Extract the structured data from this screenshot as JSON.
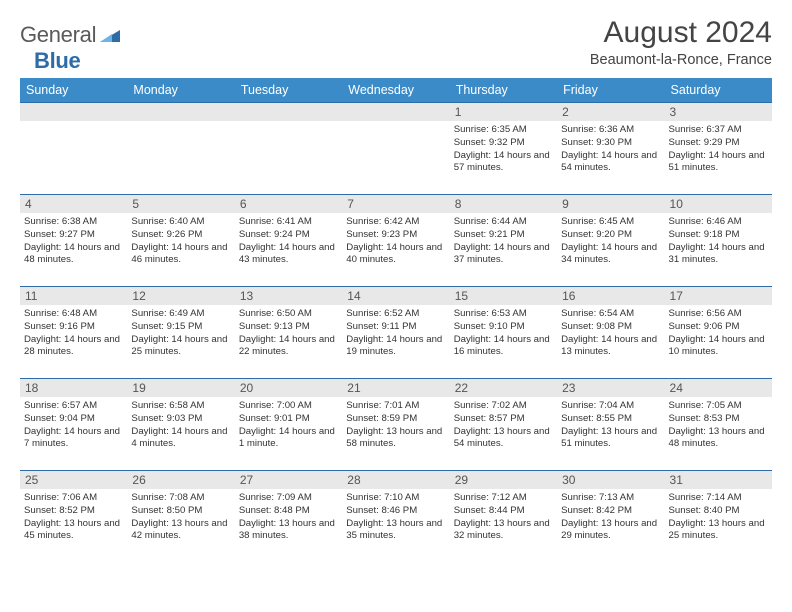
{
  "brand": {
    "part1": "General",
    "part2": "Blue"
  },
  "title": "August 2024",
  "location": "Beaumont-la-Ronce, France",
  "colors": {
    "header_blue": "#3b8bc9",
    "divider_blue": "#2e6ca8",
    "daynum_bg": "#e8e8e8",
    "background": "#ffffff",
    "text": "#222222"
  },
  "typography": {
    "body_pt": 9.6,
    "daynum_pt": 12,
    "header_pt": 12.5,
    "title_pt": 30,
    "subtitle_pt": 14.5
  },
  "calendar": {
    "type": "table",
    "day_headers": [
      "Sunday",
      "Monday",
      "Tuesday",
      "Wednesday",
      "Thursday",
      "Friday",
      "Saturday"
    ],
    "weeks": [
      [
        null,
        null,
        null,
        null,
        {
          "n": "1",
          "sunrise": "6:35 AM",
          "sunset": "9:32 PM",
          "daylight": "14 hours and 57 minutes."
        },
        {
          "n": "2",
          "sunrise": "6:36 AM",
          "sunset": "9:30 PM",
          "daylight": "14 hours and 54 minutes."
        },
        {
          "n": "3",
          "sunrise": "6:37 AM",
          "sunset": "9:29 PM",
          "daylight": "14 hours and 51 minutes."
        }
      ],
      [
        {
          "n": "4",
          "sunrise": "6:38 AM",
          "sunset": "9:27 PM",
          "daylight": "14 hours and 48 minutes."
        },
        {
          "n": "5",
          "sunrise": "6:40 AM",
          "sunset": "9:26 PM",
          "daylight": "14 hours and 46 minutes."
        },
        {
          "n": "6",
          "sunrise": "6:41 AM",
          "sunset": "9:24 PM",
          "daylight": "14 hours and 43 minutes."
        },
        {
          "n": "7",
          "sunrise": "6:42 AM",
          "sunset": "9:23 PM",
          "daylight": "14 hours and 40 minutes."
        },
        {
          "n": "8",
          "sunrise": "6:44 AM",
          "sunset": "9:21 PM",
          "daylight": "14 hours and 37 minutes."
        },
        {
          "n": "9",
          "sunrise": "6:45 AM",
          "sunset": "9:20 PM",
          "daylight": "14 hours and 34 minutes."
        },
        {
          "n": "10",
          "sunrise": "6:46 AM",
          "sunset": "9:18 PM",
          "daylight": "14 hours and 31 minutes."
        }
      ],
      [
        {
          "n": "11",
          "sunrise": "6:48 AM",
          "sunset": "9:16 PM",
          "daylight": "14 hours and 28 minutes."
        },
        {
          "n": "12",
          "sunrise": "6:49 AM",
          "sunset": "9:15 PM",
          "daylight": "14 hours and 25 minutes."
        },
        {
          "n": "13",
          "sunrise": "6:50 AM",
          "sunset": "9:13 PM",
          "daylight": "14 hours and 22 minutes."
        },
        {
          "n": "14",
          "sunrise": "6:52 AM",
          "sunset": "9:11 PM",
          "daylight": "14 hours and 19 minutes."
        },
        {
          "n": "15",
          "sunrise": "6:53 AM",
          "sunset": "9:10 PM",
          "daylight": "14 hours and 16 minutes."
        },
        {
          "n": "16",
          "sunrise": "6:54 AM",
          "sunset": "9:08 PM",
          "daylight": "14 hours and 13 minutes."
        },
        {
          "n": "17",
          "sunrise": "6:56 AM",
          "sunset": "9:06 PM",
          "daylight": "14 hours and 10 minutes."
        }
      ],
      [
        {
          "n": "18",
          "sunrise": "6:57 AM",
          "sunset": "9:04 PM",
          "daylight": "14 hours and 7 minutes."
        },
        {
          "n": "19",
          "sunrise": "6:58 AM",
          "sunset": "9:03 PM",
          "daylight": "14 hours and 4 minutes."
        },
        {
          "n": "20",
          "sunrise": "7:00 AM",
          "sunset": "9:01 PM",
          "daylight": "14 hours and 1 minute."
        },
        {
          "n": "21",
          "sunrise": "7:01 AM",
          "sunset": "8:59 PM",
          "daylight": "13 hours and 58 minutes."
        },
        {
          "n": "22",
          "sunrise": "7:02 AM",
          "sunset": "8:57 PM",
          "daylight": "13 hours and 54 minutes."
        },
        {
          "n": "23",
          "sunrise": "7:04 AM",
          "sunset": "8:55 PM",
          "daylight": "13 hours and 51 minutes."
        },
        {
          "n": "24",
          "sunrise": "7:05 AM",
          "sunset": "8:53 PM",
          "daylight": "13 hours and 48 minutes."
        }
      ],
      [
        {
          "n": "25",
          "sunrise": "7:06 AM",
          "sunset": "8:52 PM",
          "daylight": "13 hours and 45 minutes."
        },
        {
          "n": "26",
          "sunrise": "7:08 AM",
          "sunset": "8:50 PM",
          "daylight": "13 hours and 42 minutes."
        },
        {
          "n": "27",
          "sunrise": "7:09 AM",
          "sunset": "8:48 PM",
          "daylight": "13 hours and 38 minutes."
        },
        {
          "n": "28",
          "sunrise": "7:10 AM",
          "sunset": "8:46 PM",
          "daylight": "13 hours and 35 minutes."
        },
        {
          "n": "29",
          "sunrise": "7:12 AM",
          "sunset": "8:44 PM",
          "daylight": "13 hours and 32 minutes."
        },
        {
          "n": "30",
          "sunrise": "7:13 AM",
          "sunset": "8:42 PM",
          "daylight": "13 hours and 29 minutes."
        },
        {
          "n": "31",
          "sunrise": "7:14 AM",
          "sunset": "8:40 PM",
          "daylight": "13 hours and 25 minutes."
        }
      ]
    ],
    "labels": {
      "sunrise": "Sunrise: ",
      "sunset": "Sunset: ",
      "daylight": "Daylight: "
    }
  }
}
